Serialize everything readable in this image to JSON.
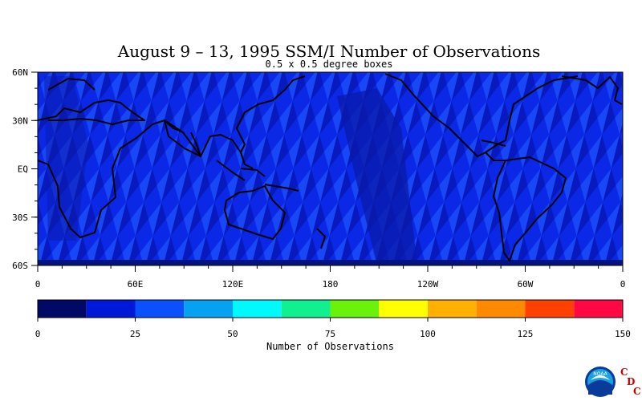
{
  "chart_data": {
    "type": "heatmap",
    "title": "August 9 – 13, 1995 SSM/I Number of Observations",
    "subtitle": "0.5 x 0.5 degree boxes",
    "x_axis": {
      "ticks": [
        "0",
        "60E",
        "120E",
        "180",
        "120W",
        "60W",
        "0"
      ],
      "range_deg_east": [
        0,
        360
      ]
    },
    "y_axis": {
      "ticks": [
        "60N",
        "30N",
        "EQ",
        "30S",
        "60S"
      ],
      "range_lat": [
        -60,
        60
      ]
    },
    "colorbar": {
      "label": "Number of Observations",
      "ticks": [
        "0",
        "25",
        "50",
        "75",
        "100",
        "125",
        "150"
      ],
      "range": [
        0,
        150
      ],
      "bins": [
        {
          "min": 0,
          "max": 12.5,
          "color": "#000a66"
        },
        {
          "min": 12.5,
          "max": 25,
          "color": "#0018d8"
        },
        {
          "min": 25,
          "max": 37.5,
          "color": "#0a50ff"
        },
        {
          "min": 37.5,
          "max": 50,
          "color": "#06a2f2"
        },
        {
          "min": 50,
          "max": 62.5,
          "color": "#00f8ff"
        },
        {
          "min": 62.5,
          "max": 75,
          "color": "#10f090"
        },
        {
          "min": 75,
          "max": 87.5,
          "color": "#6af20a"
        },
        {
          "min": 87.5,
          "max": 100,
          "color": "#ffff00"
        },
        {
          "min": 100,
          "max": 112.5,
          "color": "#ffb000"
        },
        {
          "min": 112.5,
          "max": 125,
          "color": "#ff8a00"
        },
        {
          "min": 125,
          "max": 137.5,
          "color": "#ff4000"
        },
        {
          "min": 137.5,
          "max": 150,
          "color": "#ff0844"
        }
      ]
    },
    "field_colors": {
      "ocean_base": "#0a28e6",
      "swath_dark": "#0818b8",
      "swath_light": "#1a4af8",
      "low_band": "#031480",
      "coast": "#000000"
    }
  },
  "logo": {
    "emblem_text": "NOAA",
    "cdc_letters": [
      "C",
      "D",
      "C"
    ],
    "cdc_color": "#cc0000"
  }
}
